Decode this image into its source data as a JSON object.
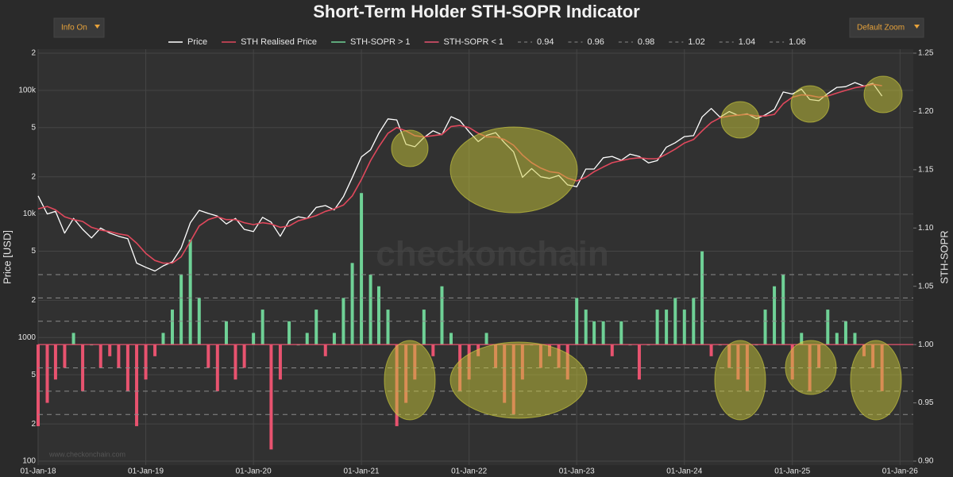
{
  "ui": {
    "info_button": "Info On",
    "zoom_button": "Default Zoom",
    "watermark": "checkonchain",
    "watermark_url": "www.checkonchain.com"
  },
  "chart_data": {
    "type": "line",
    "title": "Short-Term Holder STH-SOPR Indicator",
    "y_label": "Price [USD]",
    "y2_label": "STH-SOPR",
    "log_y": true,
    "grid": true,
    "legend": "top",
    "xlim": [
      "2018-01-01",
      "2026-02-15"
    ],
    "xticks": [
      {
        "value": "2018-01-01",
        "label": "01-Jan-18"
      },
      {
        "value": "2019-01-01",
        "label": "01-Jan-19"
      },
      {
        "value": "2020-01-01",
        "label": "01-Jan-20"
      },
      {
        "value": "2021-01-01",
        "label": "01-Jan-21"
      },
      {
        "value": "2022-01-01",
        "label": "01-Jan-22"
      },
      {
        "value": "2023-01-01",
        "label": "01-Jan-23"
      },
      {
        "value": "2024-01-01",
        "label": "01-Jan-24"
      },
      {
        "value": "2025-01-01",
        "label": "01-Jan-25"
      },
      {
        "value": "2026-01-01",
        "label": "01-Jan-26"
      }
    ],
    "ylim": [
      100,
      200000
    ],
    "yticks": [
      100,
      {
        "value": 200,
        "label": "2"
      },
      {
        "value": 500,
        "label": "5"
      },
      1000,
      {
        "value": 2000,
        "label": "2"
      },
      {
        "value": 5000,
        "label": "5"
      },
      {
        "value": 10000,
        "label": "10k"
      },
      {
        "value": 20000,
        "label": "2"
      },
      {
        "value": 50000,
        "label": "5"
      },
      {
        "value": 100000,
        "label": "100k"
      },
      {
        "value": 200000,
        "label": "2"
      }
    ],
    "y2lim": [
      0.9,
      1.25
    ],
    "y2ticks": [
      {
        "value": 0.9,
        "label": "0.90"
      },
      0.95,
      {
        "value": 1,
        "label": "1.00"
      },
      1.05,
      {
        "value": 1.1,
        "label": "1.10"
      },
      1.15,
      {
        "value": 1.2,
        "label": "1.20"
      },
      1.25
    ],
    "threshold_line": 1,
    "reference_lines": [
      {
        "name": "0.94",
        "value": 0.94
      },
      {
        "name": "0.96",
        "value": 0.96
      },
      {
        "name": "0.98",
        "value": 0.98
      },
      {
        "name": "1.02",
        "value": 1.02
      },
      {
        "name": "1.04",
        "value": 1.04
      },
      {
        "name": "1.06",
        "value": 1.06
      }
    ],
    "reference_color": "#8a8a8a",
    "x": [
      "2018-01-01",
      "2018-02-01",
      "2018-03-01",
      "2018-04-01",
      "2018-05-01",
      "2018-06-01",
      "2018-07-01",
      "2018-08-01",
      "2018-09-01",
      "2018-10-01",
      "2018-11-01",
      "2018-12-01",
      "2019-01-01",
      "2019-02-01",
      "2019-03-01",
      "2019-04-01",
      "2019-05-01",
      "2019-06-01",
      "2019-07-01",
      "2019-08-01",
      "2019-09-01",
      "2019-10-01",
      "2019-11-01",
      "2019-12-01",
      "2020-01-01",
      "2020-02-01",
      "2020-03-01",
      "2020-04-01",
      "2020-05-01",
      "2020-06-01",
      "2020-07-01",
      "2020-08-01",
      "2020-09-01",
      "2020-10-01",
      "2020-11-01",
      "2020-12-01",
      "2021-01-01",
      "2021-02-01",
      "2021-03-01",
      "2021-04-01",
      "2021-05-01",
      "2021-06-01",
      "2021-07-01",
      "2021-08-01",
      "2021-09-01",
      "2021-10-01",
      "2021-11-01",
      "2021-12-01",
      "2022-01-01",
      "2022-02-01",
      "2022-03-01",
      "2022-04-01",
      "2022-05-01",
      "2022-06-01",
      "2022-07-01",
      "2022-08-01",
      "2022-09-01",
      "2022-10-01",
      "2022-11-01",
      "2022-12-01",
      "2023-01-01",
      "2023-02-01",
      "2023-03-01",
      "2023-04-01",
      "2023-05-01",
      "2023-06-01",
      "2023-07-01",
      "2023-08-01",
      "2023-09-01",
      "2023-10-01",
      "2023-11-01",
      "2023-12-01",
      "2024-01-01",
      "2024-02-01",
      "2024-03-01",
      "2024-04-01",
      "2024-05-01",
      "2024-06-01",
      "2024-07-01",
      "2024-08-01",
      "2024-09-01",
      "2024-10-01",
      "2024-11-01",
      "2024-12-01",
      "2025-01-01",
      "2025-02-01",
      "2025-03-01",
      "2025-04-01",
      "2025-05-01",
      "2025-06-01",
      "2025-07-01",
      "2025-08-01",
      "2025-09-01",
      "2025-10-01",
      "2025-11-01"
    ],
    "series": [
      {
        "name": "Price",
        "color": "#ffffff",
        "values": [
          14000,
          10000,
          10500,
          7000,
          9200,
          7500,
          6400,
          7700,
          7000,
          6600,
          6300,
          4000,
          3700,
          3450,
          3800,
          4100,
          5300,
          8500,
          10700,
          10100,
          9600,
          8300,
          9200,
          7500,
          7200,
          9400,
          8600,
          6600,
          8800,
          9500,
          9200,
          11300,
          11700,
          10800,
          13800,
          19700,
          29000,
          33000,
          45000,
          58800,
          57700,
          36700,
          35000,
          41500,
          47100,
          43800,
          61300,
          57000,
          46300,
          38500,
          43200,
          45500,
          37700,
          31800,
          19800,
          23300,
          20000,
          19400,
          20500,
          17200,
          16600,
          23100,
          23100,
          28500,
          29200,
          27200,
          30500,
          29200,
          25900,
          27000,
          34700,
          37700,
          42300,
          43000,
          61000,
          71300,
          60600,
          67500,
          62700,
          64600,
          59000,
          63300,
          70200,
          97000,
          93400,
          102400,
          84300,
          82500,
          94200,
          105700,
          107100,
          115800,
          108200,
          114000,
          90000
        ]
      },
      {
        "name": "STH Realised Price",
        "color": "#e0485c",
        "values": [
          11000,
          11500,
          10800,
          9500,
          9000,
          8700,
          7800,
          7400,
          7200,
          6900,
          6700,
          5800,
          4800,
          4200,
          4000,
          4000,
          4500,
          6000,
          8000,
          9000,
          9500,
          9000,
          9000,
          8500,
          8200,
          8500,
          8300,
          7800,
          8000,
          8800,
          9200,
          9700,
          10500,
          11000,
          11800,
          14000,
          19000,
          27000,
          35000,
          45000,
          50000,
          47000,
          43000,
          42000,
          43000,
          44000,
          51000,
          52000,
          50000,
          45000,
          42000,
          42000,
          40000,
          36000,
          30000,
          26000,
          23500,
          22000,
          21500,
          19500,
          18500,
          19800,
          22000,
          24000,
          26000,
          27000,
          28000,
          28500,
          28000,
          28000,
          30500,
          33500,
          37500,
          40000,
          47000,
          55000,
          60000,
          62000,
          63000,
          64000,
          62000,
          62000,
          64000,
          78000,
          88000,
          92000,
          91000,
          88000,
          90000,
          95000,
          100000,
          105000,
          108000,
          112000,
          109000
        ]
      },
      {
        "name": "STH-SOPR > 1",
        "color": "#6fd196",
        "axis": "y2",
        "values": [
          null,
          null,
          null,
          null,
          1.01,
          null,
          1.0,
          null,
          null,
          null,
          null,
          null,
          null,
          null,
          1.01,
          1.03,
          1.06,
          1.09,
          1.04,
          null,
          null,
          1.02,
          null,
          null,
          1.01,
          1.03,
          null,
          null,
          1.02,
          1.0,
          1.01,
          1.03,
          null,
          1.01,
          1.04,
          1.07,
          1.13,
          1.06,
          1.05,
          1.03,
          null,
          null,
          null,
          1.03,
          null,
          1.05,
          1.01,
          null,
          null,
          null,
          1.01,
          null,
          null,
          null,
          null,
          1.0,
          null,
          null,
          null,
          null,
          1.04,
          1.03,
          1.02,
          1.02,
          null,
          1.02,
          1.0,
          null,
          1.0,
          1.03,
          1.03,
          1.04,
          1.03,
          1.04,
          1.08,
          null,
          1.0,
          null,
          null,
          null,
          1.0,
          1.03,
          1.05,
          1.06,
          null,
          1.01,
          null,
          null,
          1.03,
          1.01,
          1.02,
          1.01,
          null,
          null,
          null
        ]
      },
      {
        "name": "STH-SOPR < 1",
        "color": "#e8536f",
        "axis": "y2",
        "values": [
          0.93,
          0.95,
          0.97,
          0.98,
          null,
          0.96,
          null,
          0.98,
          0.99,
          0.98,
          0.96,
          0.93,
          0.97,
          0.99,
          null,
          null,
          null,
          null,
          null,
          0.98,
          0.96,
          null,
          0.97,
          0.98,
          null,
          null,
          0.91,
          0.97,
          null,
          null,
          null,
          null,
          0.99,
          null,
          null,
          null,
          null,
          null,
          null,
          null,
          0.93,
          0.95,
          0.97,
          null,
          0.99,
          null,
          null,
          0.96,
          0.97,
          0.99,
          null,
          0.98,
          0.95,
          0.94,
          0.97,
          null,
          0.98,
          0.99,
          0.98,
          0.97,
          null,
          null,
          null,
          null,
          0.99,
          null,
          null,
          0.97,
          null,
          null,
          null,
          null,
          null,
          null,
          null,
          0.99,
          null,
          0.98,
          0.97,
          0.96,
          null,
          null,
          null,
          null,
          0.97,
          null,
          0.96,
          0.98,
          null,
          null,
          null,
          null,
          0.99,
          0.98,
          0.96
        ]
      }
    ]
  }
}
